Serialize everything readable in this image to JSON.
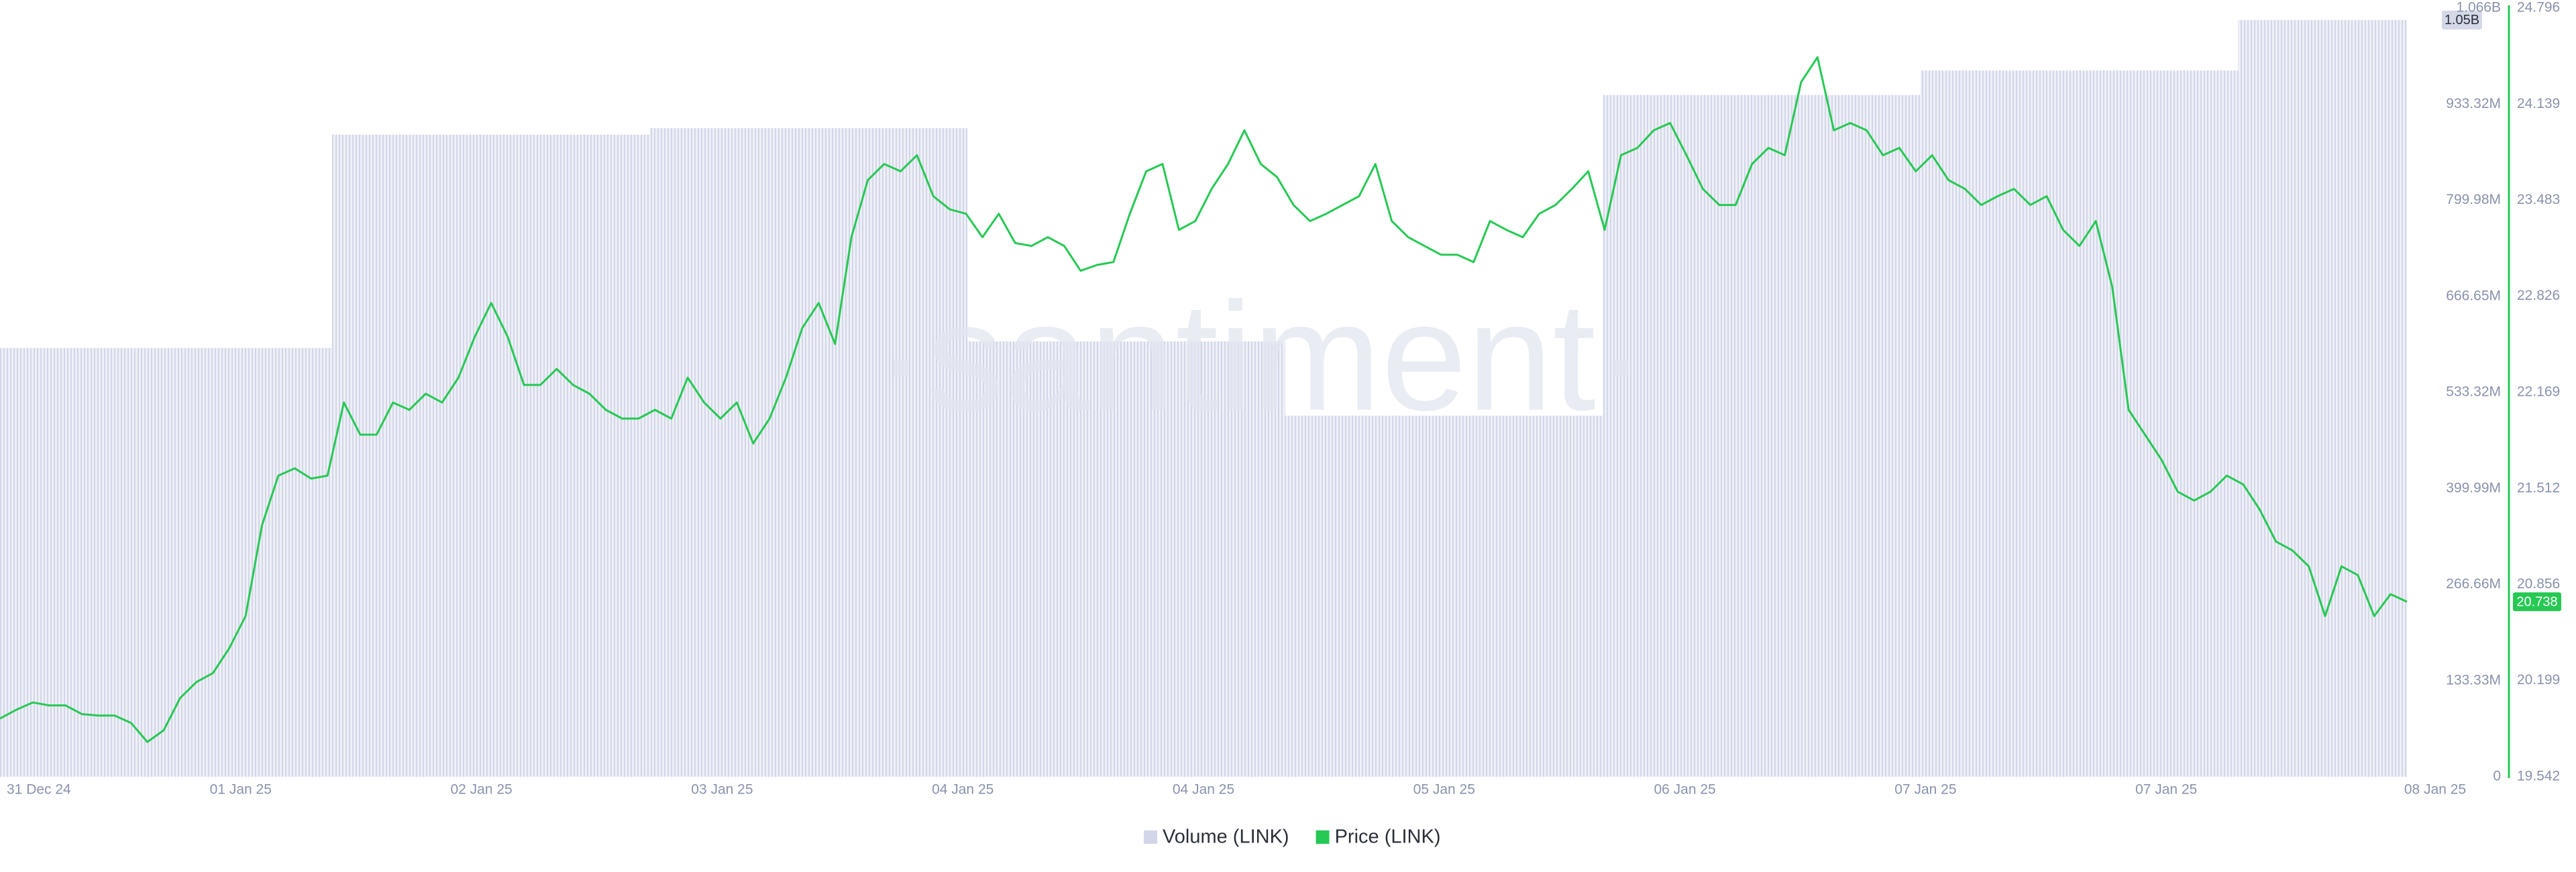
{
  "chart_data": {
    "type": "line",
    "watermark": "·santiment·",
    "x_labels": [
      "31 Dec 24",
      "01 Jan 25",
      "02 Jan 25",
      "03 Jan 25",
      "04 Jan 25",
      "04 Jan 25",
      "05 Jan 25",
      "06 Jan 25",
      "07 Jan 25",
      "07 Jan 25",
      "08 Jan 25"
    ],
    "ylim": [
      0,
      1066640000
    ],
    "yticks": [
      0,
      {
        "value": 133330000,
        "label": "133.33M"
      },
      {
        "value": 266660000,
        "label": "266.66M"
      },
      {
        "value": 399990000,
        "label": "399.99M"
      },
      {
        "value": 533320000,
        "label": "533.32M"
      },
      {
        "value": 666650000,
        "label": "666.65M"
      },
      {
        "value": 799980000,
        "label": "799.98M"
      },
      {
        "value": 933320000,
        "label": "933.32M"
      },
      {
        "value": 1066640000,
        "label": "1.066B"
      }
    ],
    "y2lim": [
      19.542,
      24.796
    ],
    "y2ticks": [
      19.542,
      20.199,
      20.856,
      21.512,
      22.169,
      22.826,
      23.483,
      24.139,
      24.796
    ],
    "series": [
      {
        "name": "Volume (LINK)",
        "type": "step",
        "axis": "y",
        "color": "#d3d6e8",
        "values": [
          595000000,
          891000000,
          900000000,
          604000000,
          501000000,
          946000000,
          980000000,
          1050000000
        ],
        "value_labels": [
          null,
          null,
          null,
          null,
          null,
          null,
          null,
          "1.05B"
        ]
      },
      {
        "name": "Price (LINK)",
        "type": "line",
        "axis": "y2",
        "color": "#26c953",
        "values": [
          19.94,
          20.0,
          20.05,
          20.03,
          20.03,
          19.97,
          19.96,
          19.96,
          19.91,
          19.78,
          19.86,
          20.08,
          20.19,
          20.25,
          20.42,
          20.64,
          21.26,
          21.6,
          21.65,
          21.58,
          21.6,
          22.1,
          21.88,
          21.88,
          22.1,
          22.05,
          22.16,
          22.1,
          22.27,
          22.55,
          22.78,
          22.55,
          22.22,
          22.22,
          22.33,
          22.22,
          22.16,
          22.05,
          21.99,
          21.99,
          22.05,
          21.99,
          22.27,
          22.1,
          21.99,
          22.1,
          21.82,
          21.99,
          22.27,
          22.61,
          22.78,
          22.5,
          23.23,
          23.62,
          23.73,
          23.68,
          23.79,
          23.51,
          23.42,
          23.39,
          23.23,
          23.39,
          23.19,
          23.17,
          23.23,
          23.17,
          23.0,
          23.04,
          23.06,
          23.39,
          23.68,
          23.73,
          23.28,
          23.34,
          23.56,
          23.73,
          23.96,
          23.73,
          23.64,
          23.45,
          23.34,
          23.39,
          23.45,
          23.51,
          23.73,
          23.34,
          23.23,
          23.17,
          23.11,
          23.11,
          23.06,
          23.34,
          23.28,
          23.23,
          23.39,
          23.45,
          23.56,
          23.68,
          23.28,
          23.79,
          23.84,
          23.96,
          24.01,
          23.79,
          23.56,
          23.45,
          23.45,
          23.73,
          23.84,
          23.79,
          24.29,
          24.46,
          23.96,
          24.01,
          23.96,
          23.79,
          23.84,
          23.68,
          23.79,
          23.62,
          23.56,
          23.45,
          23.51,
          23.56,
          23.45,
          23.51,
          23.28,
          23.17,
          23.34,
          22.89,
          22.05,
          21.88,
          21.71,
          21.49,
          21.43,
          21.49,
          21.6,
          21.54,
          21.37,
          21.15,
          21.09,
          20.98,
          20.64,
          20.98,
          20.92,
          20.64,
          20.79,
          20.738
        ]
      }
    ]
  }
}
